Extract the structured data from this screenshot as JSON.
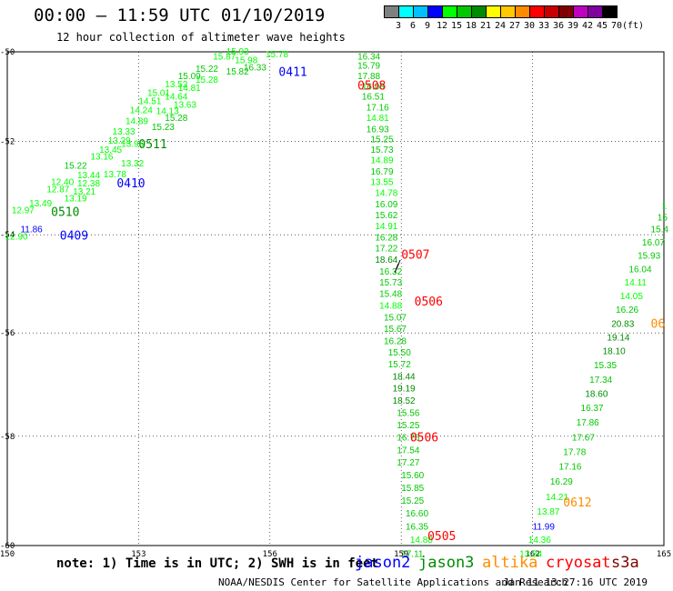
{
  "header": {
    "title": "00:00 – 11:59 UTC 01/10/2019",
    "subtitle": "12 hour collection of altimeter wave heights"
  },
  "legend": {
    "unit": "(ft)",
    "colors": [
      "#808080",
      "#00ffff",
      "#00c0ff",
      "#0000ff",
      "#00ff00",
      "#00c800",
      "#008c00",
      "#ffff00",
      "#ffc800",
      "#ff8c00",
      "#ff0000",
      "#c80000",
      "#800000",
      "#c000c0",
      "#8000a0",
      "#000000"
    ],
    "labels": [
      "3",
      "6",
      "9",
      "12",
      "15",
      "18",
      "21",
      "24",
      "27",
      "30",
      "33",
      "36",
      "39",
      "42",
      "45",
      "70"
    ]
  },
  "map": {
    "lon_ticks": [
      "150",
      "153",
      "156",
      "159",
      "162",
      "165"
    ],
    "lat_ticks": [
      "-50",
      "-52",
      "-54",
      "-56",
      "-58",
      "-60"
    ],
    "lat_tick_values": [
      -50,
      -52,
      -54,
      -56,
      -58,
      -60
    ],
    "lon_range": [
      150,
      165
    ],
    "lat_range": [
      -60,
      -50
    ],
    "lat_scale": "mercator",
    "graticule": true,
    "tracks": [
      {
        "pass": "0409",
        "sat": "jason2",
        "color": "#0000ff",
        "label_lon": 151.2,
        "label_lat": -54.1
      },
      {
        "pass": "0410",
        "sat": "jason2",
        "color": "#0000ff",
        "label_lon": 152.5,
        "label_lat": -53.0
      },
      {
        "pass": "0411",
        "sat": "jason2",
        "color": "#0000ff",
        "label_lon": 156.2,
        "label_lat": -50.55
      },
      {
        "pass": "0510",
        "sat": "jason3",
        "color": "#008c00",
        "label_lon": 151.0,
        "label_lat": -53.6
      },
      {
        "pass": "0511",
        "sat": "jason3",
        "color": "#008c00",
        "label_lon": 153.0,
        "label_lat": -52.15
      },
      {
        "pass": "0505",
        "sat": "cryosat",
        "color": "#ff0000",
        "label_lon": 159.6,
        "label_lat": -59.9
      },
      {
        "pass": "0506",
        "sat": "cryosat",
        "color": "#ff0000",
        "label_lon": 159.3,
        "label_lat": -55.45
      },
      {
        "pass": "0506",
        "sat": "cryosat",
        "color": "#ff0000",
        "label_lon": 159.2,
        "label_lat": -58.1
      },
      {
        "pass": "0507",
        "sat": "cryosat",
        "color": "#ff0000",
        "label_lon": 159.0,
        "label_lat": -54.5
      },
      {
        "pass": "0508",
        "sat": "cryosat",
        "color": "#ff0000",
        "label_lon": 158.0,
        "label_lat": -50.85
      },
      {
        "pass": "0612",
        "sat": "altika",
        "color": "#ff8c00",
        "label_lon": 162.7,
        "label_lat": -59.3
      },
      {
        "pass": "06",
        "sat": "altika",
        "color": "#ff8c00",
        "label_lon": 164.7,
        "label_lat": -55.9
      }
    ],
    "values": [
      {
        "v": "15.93",
        "lon": 155.0,
        "lat": -50.06,
        "c": "#00ff00"
      },
      {
        "v": "15.78",
        "lon": 155.9,
        "lat": -50.12,
        "c": "#00ff00"
      },
      {
        "v": "15.87",
        "lon": 154.7,
        "lat": -50.18,
        "c": "#00ff00"
      },
      {
        "v": "15.98",
        "lon": 155.2,
        "lat": -50.26,
        "c": "#00ff00"
      },
      {
        "v": "16.33",
        "lon": 155.4,
        "lat": -50.42,
        "c": "#00c800"
      },
      {
        "v": "15.22",
        "lon": 154.3,
        "lat": -50.45,
        "c": "#00c800"
      },
      {
        "v": "15.82",
        "lon": 155.0,
        "lat": -50.52,
        "c": "#00c800"
      },
      {
        "v": "15.09",
        "lon": 153.9,
        "lat": -50.62,
        "c": "#00c800"
      },
      {
        "v": "15.28",
        "lon": 154.3,
        "lat": -50.7,
        "c": "#00ff00"
      },
      {
        "v": "13.52",
        "lon": 153.6,
        "lat": -50.8,
        "c": "#00ff00"
      },
      {
        "v": "14.81",
        "lon": 153.9,
        "lat": -50.88,
        "c": "#00ff00"
      },
      {
        "v": "15.01",
        "lon": 153.2,
        "lat": -51.0,
        "c": "#00ff00"
      },
      {
        "v": "14.64",
        "lon": 153.6,
        "lat": -51.08,
        "c": "#00ff00"
      },
      {
        "v": "14.51",
        "lon": 153.0,
        "lat": -51.18,
        "c": "#00ff00"
      },
      {
        "v": "13.63",
        "lon": 153.8,
        "lat": -51.26,
        "c": "#00ff00"
      },
      {
        "v": "14.24",
        "lon": 152.8,
        "lat": -51.38,
        "c": "#00ff00"
      },
      {
        "v": "14.13",
        "lon": 153.4,
        "lat": -51.4,
        "c": "#00ff00"
      },
      {
        "v": "15.28",
        "lon": 153.6,
        "lat": -51.55,
        "c": "#00c800"
      },
      {
        "v": "14.89",
        "lon": 152.7,
        "lat": -51.62,
        "c": "#00ff00"
      },
      {
        "v": "15.23",
        "lon": 153.3,
        "lat": -51.75,
        "c": "#00c800"
      },
      {
        "v": "13.33",
        "lon": 152.4,
        "lat": -51.85,
        "c": "#00ff00"
      },
      {
        "v": "13.29",
        "lon": 152.3,
        "lat": -52.05,
        "c": "#00ff00"
      },
      {
        "v": "13.45",
        "lon": 152.1,
        "lat": -52.25,
        "c": "#00ff00"
      },
      {
        "v": "13.95",
        "lon": 152.6,
        "lat": -52.12,
        "c": "#00ff00"
      },
      {
        "v": "13.16",
        "lon": 151.9,
        "lat": -52.4,
        "c": "#00ff00"
      },
      {
        "v": "13.32",
        "lon": 152.6,
        "lat": -52.55,
        "c": "#00ff00"
      },
      {
        "v": "15.22",
        "lon": 151.3,
        "lat": -52.6,
        "c": "#00c800"
      },
      {
        "v": "13.44",
        "lon": 151.6,
        "lat": -52.8,
        "c": "#00ff00"
      },
      {
        "v": "12.40",
        "lon": 151.0,
        "lat": -52.95,
        "c": "#00ff00"
      },
      {
        "v": "12.38",
        "lon": 151.6,
        "lat": -52.98,
        "c": "#00ff00"
      },
      {
        "v": "13.78",
        "lon": 152.2,
        "lat": -52.78,
        "c": "#00ff00"
      },
      {
        "v": "12.87",
        "lon": 150.9,
        "lat": -53.1,
        "c": "#00ff00"
      },
      {
        "v": "13.21",
        "lon": 151.5,
        "lat": -53.15,
        "c": "#00ff00"
      },
      {
        "v": "13.19",
        "lon": 151.3,
        "lat": -53.3,
        "c": "#00ff00"
      },
      {
        "v": "13.49",
        "lon": 150.5,
        "lat": -53.4,
        "c": "#00ff00"
      },
      {
        "v": "12.97",
        "lon": 150.1,
        "lat": -53.55,
        "c": "#00ff00"
      },
      {
        "v": "11.86",
        "lon": 150.3,
        "lat": -53.95,
        "c": "#0000ff"
      },
      {
        "v": "12.90",
        "lon": 149.95,
        "lat": -54.1,
        "c": "#00ff00"
      },
      {
        "v": "16.34",
        "lon": 158.0,
        "lat": -50.18,
        "c": "#00c800"
      },
      {
        "v": "15.79",
        "lon": 158.0,
        "lat": -50.38,
        "c": "#00c800"
      },
      {
        "v": "17.88",
        "lon": 158.0,
        "lat": -50.62,
        "c": "#00c800"
      },
      {
        "v": "16.08",
        "lon": 158.1,
        "lat": -50.85,
        "c": "#00c800"
      },
      {
        "v": "16.51",
        "lon": 158.1,
        "lat": -51.08,
        "c": "#00c800"
      },
      {
        "v": "17.16",
        "lon": 158.2,
        "lat": -51.32,
        "c": "#00c800"
      },
      {
        "v": "14.81",
        "lon": 158.2,
        "lat": -51.55,
        "c": "#00ff00"
      },
      {
        "v": "16.93",
        "lon": 158.2,
        "lat": -51.8,
        "c": "#00c800"
      },
      {
        "v": "15.25",
        "lon": 158.3,
        "lat": -52.02,
        "c": "#00c800"
      },
      {
        "v": "15.73",
        "lon": 158.3,
        "lat": -52.25,
        "c": "#00c800"
      },
      {
        "v": "14.89",
        "lon": 158.3,
        "lat": -52.48,
        "c": "#00ff00"
      },
      {
        "v": "16.79",
        "lon": 158.3,
        "lat": -52.72,
        "c": "#00c800"
      },
      {
        "v": "13.55",
        "lon": 158.3,
        "lat": -52.95,
        "c": "#00ff00"
      },
      {
        "v": "14.78",
        "lon": 158.4,
        "lat": -53.18,
        "c": "#00ff00"
      },
      {
        "v": "16.09",
        "lon": 158.4,
        "lat": -53.42,
        "c": "#00c800"
      },
      {
        "v": "15.62",
        "lon": 158.4,
        "lat": -53.65,
        "c": "#00c800"
      },
      {
        "v": "14.91",
        "lon": 158.4,
        "lat": -53.88,
        "c": "#00ff00"
      },
      {
        "v": "16.28",
        "lon": 158.4,
        "lat": -54.12,
        "c": "#00c800"
      },
      {
        "v": "17.22",
        "lon": 158.4,
        "lat": -54.35,
        "c": "#00c800"
      },
      {
        "v": "18.64",
        "lon": 158.4,
        "lat": -54.58,
        "c": "#008c00"
      },
      {
        "v": "16.32",
        "lon": 158.5,
        "lat": -54.82,
        "c": "#00c800"
      },
      {
        "v": "15.73",
        "lon": 158.5,
        "lat": -55.05,
        "c": "#00c800"
      },
      {
        "v": "15.48",
        "lon": 158.5,
        "lat": -55.28,
        "c": "#00c800"
      },
      {
        "v": "14.88",
        "lon": 158.5,
        "lat": -55.52,
        "c": "#00ff00"
      },
      {
        "v": "15.07",
        "lon": 158.6,
        "lat": -55.75,
        "c": "#00c800"
      },
      {
        "v": "15.67",
        "lon": 158.6,
        "lat": -55.98,
        "c": "#00c800"
      },
      {
        "v": "16.28",
        "lon": 158.6,
        "lat": -56.22,
        "c": "#00c800"
      },
      {
        "v": "15.50",
        "lon": 158.7,
        "lat": -56.45,
        "c": "#00c800"
      },
      {
        "v": "15.72",
        "lon": 158.7,
        "lat": -56.68,
        "c": "#00c800"
      },
      {
        "v": "18.44",
        "lon": 158.8,
        "lat": -56.92,
        "c": "#008c00"
      },
      {
        "v": "19.19",
        "lon": 158.8,
        "lat": -57.15,
        "c": "#008c00"
      },
      {
        "v": "18.52",
        "lon": 158.8,
        "lat": -57.38,
        "c": "#008c00"
      },
      {
        "v": "15.56",
        "lon": 158.9,
        "lat": -57.62,
        "c": "#00c800"
      },
      {
        "v": "15.25",
        "lon": 158.9,
        "lat": -57.85,
        "c": "#00c800"
      },
      {
        "v": "16.76",
        "lon": 158.9,
        "lat": -58.08,
        "c": "#00c800"
      },
      {
        "v": "17.54",
        "lon": 158.9,
        "lat": -58.32,
        "c": "#00c800"
      },
      {
        "v": "17.27",
        "lon": 158.9,
        "lat": -58.55,
        "c": "#00c800"
      },
      {
        "v": "15.60",
        "lon": 159.0,
        "lat": -58.78,
        "c": "#00c800"
      },
      {
        "v": "15.85",
        "lon": 159.0,
        "lat": -59.02,
        "c": "#00c800"
      },
      {
        "v": "15.25",
        "lon": 159.0,
        "lat": -59.25,
        "c": "#00c800"
      },
      {
        "v": "16.60",
        "lon": 159.1,
        "lat": -59.48,
        "c": "#00c800"
      },
      {
        "v": "16.35",
        "lon": 159.1,
        "lat": -59.72,
        "c": "#00c800"
      },
      {
        "v": "14.88",
        "lon": 159.2,
        "lat": -59.95,
        "c": "#00ff00"
      },
      {
        "v": "17.11",
        "lon": 159.0,
        "lat": -60.2,
        "c": "#00c800"
      },
      {
        "v": "13.84",
        "lon": 161.7,
        "lat": -60.2,
        "c": "#00ff00"
      },
      {
        "v": "14.36",
        "lon": 161.9,
        "lat": -59.95,
        "c": "#00ff00"
      },
      {
        "v": "11.99",
        "lon": 162.0,
        "lat": -59.72,
        "c": "#0000ff"
      },
      {
        "v": "13.87",
        "lon": 162.1,
        "lat": -59.45,
        "c": "#00ff00"
      },
      {
        "v": "14.21",
        "lon": 162.3,
        "lat": -59.18,
        "c": "#00ff00"
      },
      {
        "v": "16.29",
        "lon": 162.4,
        "lat": -58.9,
        "c": "#00c800"
      },
      {
        "v": "17.16",
        "lon": 162.6,
        "lat": -58.62,
        "c": "#00c800"
      },
      {
        "v": "17.78",
        "lon": 162.7,
        "lat": -58.35,
        "c": "#00c800"
      },
      {
        "v": "17.67",
        "lon": 162.9,
        "lat": -58.08,
        "c": "#00c800"
      },
      {
        "v": "17.86",
        "lon": 163.0,
        "lat": -57.8,
        "c": "#00c800"
      },
      {
        "v": "16.37",
        "lon": 163.1,
        "lat": -57.52,
        "c": "#00c800"
      },
      {
        "v": "18.60",
        "lon": 163.2,
        "lat": -57.25,
        "c": "#008c00"
      },
      {
        "v": "17.34",
        "lon": 163.3,
        "lat": -56.98,
        "c": "#00c800"
      },
      {
        "v": "15.35",
        "lon": 163.4,
        "lat": -56.7,
        "c": "#00c800"
      },
      {
        "v": "18.10",
        "lon": 163.6,
        "lat": -56.42,
        "c": "#008c00"
      },
      {
        "v": "19.14",
        "lon": 163.7,
        "lat": -56.15,
        "c": "#008c00"
      },
      {
        "v": "20.83",
        "lon": 163.8,
        "lat": -55.88,
        "c": "#008c00"
      },
      {
        "v": "16.26",
        "lon": 163.9,
        "lat": -55.6,
        "c": "#00c800"
      },
      {
        "v": "14.05",
        "lon": 164.0,
        "lat": -55.32,
        "c": "#00ff00"
      },
      {
        "v": "14.11",
        "lon": 164.1,
        "lat": -55.05,
        "c": "#00ff00"
      },
      {
        "v": "16.04",
        "lon": 164.2,
        "lat": -54.78,
        "c": "#00c800"
      },
      {
        "v": "15.93",
        "lon": 164.4,
        "lat": -54.5,
        "c": "#00c800"
      },
      {
        "v": "16.07",
        "lon": 164.5,
        "lat": -54.22,
        "c": "#00c800"
      },
      {
        "v": "15.4",
        "lon": 164.7,
        "lat": -53.95,
        "c": "#00c800"
      },
      {
        "v": "15",
        "lon": 164.85,
        "lat": -53.7,
        "c": "#00c800"
      },
      {
        "v": "1",
        "lon": 164.95,
        "lat": -53.45,
        "c": "#00ff00"
      }
    ]
  },
  "footer": {
    "note": "note: 1) Time is in UTC; 2) SWH is in feet",
    "satellites": [
      {
        "name": "jason2",
        "color": "#0000ff"
      },
      {
        "name": "jason3",
        "color": "#008c00"
      },
      {
        "name": "altika",
        "color": "#ff8c00"
      },
      {
        "name": "cryosat",
        "color": "#ff0000"
      },
      {
        "name": "s3a",
        "color": "#800000"
      }
    ],
    "credit": "NOAA/NESDIS Center for Satellite Applications and Research",
    "timestamp": "Jan 11 13:27:16 UTC 2019"
  }
}
